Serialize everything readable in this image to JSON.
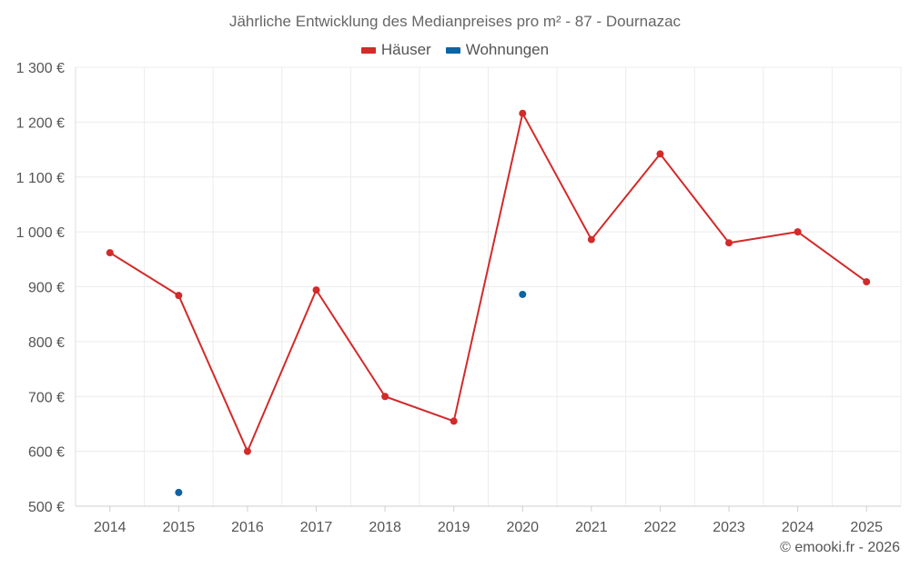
{
  "chart_data": {
    "type": "line",
    "title": "Jährliche Entwicklung des Medianpreises pro m² - 87 - Dournazac",
    "categories": [
      "2014",
      "2015",
      "2016",
      "2017",
      "2018",
      "2019",
      "2020",
      "2021",
      "2022",
      "2023",
      "2024",
      "2025"
    ],
    "series": [
      {
        "name": "Häuser",
        "color": "#d32a2a",
        "values": [
          962,
          884,
          600,
          894,
          700,
          655,
          1216,
          986,
          1142,
          980,
          1000,
          909
        ],
        "connect": true
      },
      {
        "name": "Wohnungen",
        "color": "#0b64a4",
        "values": [
          null,
          525,
          null,
          null,
          null,
          null,
          886,
          null,
          null,
          null,
          null,
          null
        ],
        "connect": false
      }
    ],
    "y_ticks": [
      500,
      600,
      700,
      800,
      900,
      1000,
      1100,
      1200,
      1300
    ],
    "y_tick_labels": [
      "500 €",
      "600 €",
      "700 €",
      "800 €",
      "900 €",
      "1 000 €",
      "1 100 €",
      "1 200 €",
      "1 300 €"
    ],
    "ylim": [
      500,
      1300
    ],
    "grid": true,
    "legend_position": "top-center"
  },
  "footer": "© emooki.fr - 2026"
}
